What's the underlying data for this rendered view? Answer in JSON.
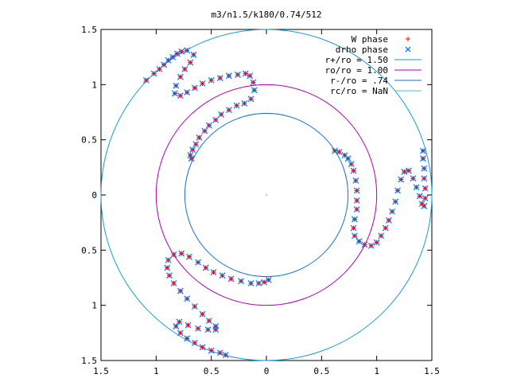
{
  "chart_data": {
    "type": "scatter",
    "title": "m3/n1.5/k180/0.74/512",
    "xlabel": "",
    "ylabel": "",
    "xlim": [
      -1.5,
      1.5
    ],
    "ylim": [
      -1.5,
      1.5
    ],
    "x_ticks": [
      {
        "value": -1.5,
        "label": "1.5"
      },
      {
        "value": -1.0,
        "label": "1"
      },
      {
        "value": -0.5,
        "label": "0.5"
      },
      {
        "value": 0.0,
        "label": "0"
      },
      {
        "value": 0.5,
        "label": "0.5"
      },
      {
        "value": 1.0,
        "label": "1"
      },
      {
        "value": 1.5,
        "label": "1.5"
      }
    ],
    "y_ticks": [
      {
        "value": 1.5,
        "label": "1.5"
      },
      {
        "value": 1.0,
        "label": "1"
      },
      {
        "value": 0.5,
        "label": "0.5"
      },
      {
        "value": 0.0,
        "label": "0"
      },
      {
        "value": -0.5,
        "label": "0.5"
      },
      {
        "value": -1.0,
        "label": "1"
      },
      {
        "value": -1.5,
        "label": "1.5"
      }
    ],
    "grid": false,
    "legend_position": "top-right",
    "legend": [
      {
        "label": "W phase",
        "kind": "marker",
        "marker": "plus",
        "color": "#ff0000"
      },
      {
        "label": "drho phase",
        "kind": "marker",
        "marker": "cross",
        "color": "#0080ff"
      },
      {
        "label": "r+/ro = 1.50",
        "kind": "line",
        "color": "#1a9bd7"
      },
      {
        "label": "ro/ro = 1.00",
        "kind": "line",
        "color": "#b000b0"
      },
      {
        "label": "r-/ro = .74",
        "kind": "line",
        "color": "#1a6fd7"
      },
      {
        "label": "rc/ro = NaN",
        "kind": "line",
        "color": "#40c8e0"
      }
    ],
    "circles": [
      {
        "name": "r+/ro = 1.50",
        "cx": 0,
        "cy": 0,
        "r": 1.5,
        "color": "#1a9bd7"
      },
      {
        "name": "ro/ro = 1.00",
        "cx": 0,
        "cy": 0,
        "r": 1.0,
        "color": "#b000b0"
      },
      {
        "name": "r-/ro = .74",
        "cx": 0,
        "cy": 0,
        "r": 0.74,
        "color": "#1a6fd7"
      }
    ],
    "series": [
      {
        "name": "W phase",
        "marker": "plus",
        "color": "#ff0000",
        "arms": [
          [
            [
              -1.09,
              1.04
            ],
            [
              -1.02,
              1.1
            ],
            [
              -0.97,
              1.14
            ],
            [
              -0.93,
              1.18
            ],
            [
              -0.89,
              1.22
            ],
            [
              -0.85,
              1.25
            ],
            [
              -0.81,
              1.28
            ],
            [
              -0.77,
              1.3
            ],
            [
              -0.72,
              1.31
            ],
            [
              -0.66,
              1.27
            ],
            [
              -0.69,
              1.2
            ],
            [
              -0.74,
              1.14
            ],
            [
              -0.78,
              1.07
            ],
            [
              -0.82,
              0.99
            ],
            [
              -0.83,
              0.92
            ],
            [
              -0.78,
              0.9
            ],
            [
              -0.72,
              0.93
            ],
            [
              -0.65,
              0.97
            ],
            [
              -0.58,
              1.01
            ],
            [
              -0.5,
              1.04
            ],
            [
              -0.42,
              1.06
            ],
            [
              -0.34,
              1.08
            ],
            [
              -0.26,
              1.09
            ],
            [
              -0.19,
              1.1
            ],
            [
              -0.15,
              1.08
            ],
            [
              -0.12,
              1.02
            ],
            [
              -0.11,
              0.95
            ],
            [
              -0.14,
              0.87
            ],
            [
              -0.2,
              0.83
            ],
            [
              -0.27,
              0.81
            ],
            [
              -0.34,
              0.77
            ],
            [
              -0.41,
              0.73
            ],
            [
              -0.46,
              0.68
            ],
            [
              -0.52,
              0.63
            ],
            [
              -0.56,
              0.58
            ],
            [
              -0.61,
              0.52
            ],
            [
              -0.64,
              0.46
            ],
            [
              -0.67,
              0.41
            ],
            [
              -0.69,
              0.36
            ],
            [
              -0.68,
              0.33
            ]
          ],
          [
            [
              0.62,
              0.4
            ],
            [
              0.66,
              0.39
            ],
            [
              0.71,
              0.36
            ],
            [
              0.74,
              0.33
            ],
            [
              0.77,
              0.28
            ],
            [
              0.79,
              0.22
            ],
            [
              0.81,
              0.13
            ],
            [
              0.82,
              0.04
            ],
            [
              0.82,
              -0.05
            ],
            [
              0.82,
              -0.13
            ],
            [
              0.8,
              -0.22
            ],
            [
              0.79,
              -0.3
            ],
            [
              0.8,
              -0.37
            ],
            [
              0.84,
              -0.42
            ],
            [
              0.89,
              -0.45
            ],
            [
              0.95,
              -0.46
            ],
            [
              1.0,
              -0.43
            ],
            [
              1.04,
              -0.37
            ],
            [
              1.08,
              -0.3
            ],
            [
              1.11,
              -0.23
            ],
            [
              1.14,
              -0.15
            ],
            [
              1.17,
              -0.06
            ],
            [
              1.19,
              0.04
            ],
            [
              1.22,
              0.14
            ],
            [
              1.25,
              0.21
            ],
            [
              1.29,
              0.22
            ],
            [
              1.33,
              0.15
            ],
            [
              1.36,
              0.07
            ],
            [
              1.39,
              -0.01
            ],
            [
              1.41,
              -0.08
            ],
            [
              1.43,
              -0.1
            ],
            [
              1.44,
              -0.03
            ],
            [
              1.44,
              0.06
            ],
            [
              1.43,
              0.15
            ],
            [
              1.43,
              0.24
            ],
            [
              1.42,
              0.33
            ],
            [
              1.42,
              0.4
            ]
          ],
          [
            [
              0.02,
              -0.77
            ],
            [
              -0.02,
              -0.79
            ],
            [
              -0.07,
              -0.8
            ],
            [
              -0.14,
              -0.8
            ],
            [
              -0.23,
              -0.78
            ],
            [
              -0.32,
              -0.76
            ],
            [
              -0.4,
              -0.73
            ],
            [
              -0.48,
              -0.7
            ],
            [
              -0.55,
              -0.66
            ],
            [
              -0.62,
              -0.61
            ],
            [
              -0.7,
              -0.56
            ],
            [
              -0.77,
              -0.53
            ],
            [
              -0.84,
              -0.54
            ],
            [
              -0.89,
              -0.59
            ],
            [
              -0.9,
              -0.66
            ],
            [
              -0.88,
              -0.73
            ],
            [
              -0.84,
              -0.8
            ],
            [
              -0.78,
              -0.87
            ],
            [
              -0.72,
              -0.94
            ],
            [
              -0.65,
              -1.01
            ],
            [
              -0.58,
              -1.08
            ],
            [
              -0.52,
              -1.14
            ],
            [
              -0.46,
              -1.19
            ],
            [
              -0.46,
              -1.22
            ],
            [
              -0.53,
              -1.22
            ],
            [
              -0.62,
              -1.21
            ],
            [
              -0.71,
              -1.18
            ],
            [
              -0.79,
              -1.15
            ],
            [
              -0.82,
              -1.19
            ],
            [
              -0.78,
              -1.25
            ],
            [
              -0.72,
              -1.3
            ],
            [
              -0.65,
              -1.34
            ],
            [
              -0.58,
              -1.38
            ],
            [
              -0.5,
              -1.41
            ],
            [
              -0.42,
              -1.43
            ],
            [
              -0.37,
              -1.45
            ]
          ]
        ]
      },
      {
        "name": "drho phase",
        "marker": "cross",
        "color": "#0080ff",
        "arms": [
          [
            [
              -1.09,
              1.04
            ],
            [
              -1.02,
              1.1
            ],
            [
              -0.97,
              1.14
            ],
            [
              -0.93,
              1.18
            ],
            [
              -0.89,
              1.22
            ],
            [
              -0.85,
              1.25
            ],
            [
              -0.81,
              1.28
            ],
            [
              -0.77,
              1.3
            ],
            [
              -0.72,
              1.31
            ],
            [
              -0.66,
              1.27
            ],
            [
              -0.69,
              1.2
            ],
            [
              -0.74,
              1.14
            ],
            [
              -0.78,
              1.07
            ],
            [
              -0.82,
              0.99
            ],
            [
              -0.83,
              0.92
            ],
            [
              -0.78,
              0.9
            ],
            [
              -0.72,
              0.93
            ],
            [
              -0.65,
              0.97
            ],
            [
              -0.58,
              1.01
            ],
            [
              -0.5,
              1.04
            ],
            [
              -0.42,
              1.06
            ],
            [
              -0.34,
              1.08
            ],
            [
              -0.26,
              1.09
            ],
            [
              -0.19,
              1.1
            ],
            [
              -0.15,
              1.08
            ],
            [
              -0.12,
              1.02
            ],
            [
              -0.11,
              0.95
            ],
            [
              -0.14,
              0.87
            ],
            [
              -0.2,
              0.83
            ],
            [
              -0.27,
              0.81
            ],
            [
              -0.34,
              0.77
            ],
            [
              -0.41,
              0.73
            ],
            [
              -0.46,
              0.68
            ],
            [
              -0.52,
              0.63
            ],
            [
              -0.56,
              0.58
            ],
            [
              -0.61,
              0.52
            ],
            [
              -0.64,
              0.46
            ],
            [
              -0.67,
              0.41
            ],
            [
              -0.69,
              0.36
            ],
            [
              -0.68,
              0.33
            ]
          ],
          [
            [
              0.62,
              0.4
            ],
            [
              0.66,
              0.39
            ],
            [
              0.71,
              0.36
            ],
            [
              0.74,
              0.33
            ],
            [
              0.77,
              0.28
            ],
            [
              0.79,
              0.22
            ],
            [
              0.81,
              0.13
            ],
            [
              0.82,
              0.04
            ],
            [
              0.82,
              -0.05
            ],
            [
              0.82,
              -0.13
            ],
            [
              0.8,
              -0.22
            ],
            [
              0.79,
              -0.3
            ],
            [
              0.8,
              -0.37
            ],
            [
              0.84,
              -0.42
            ],
            [
              0.89,
              -0.45
            ],
            [
              0.95,
              -0.46
            ],
            [
              1.0,
              -0.43
            ],
            [
              1.04,
              -0.37
            ],
            [
              1.08,
              -0.3
            ],
            [
              1.11,
              -0.23
            ],
            [
              1.14,
              -0.15
            ],
            [
              1.17,
              -0.06
            ],
            [
              1.19,
              0.04
            ],
            [
              1.22,
              0.14
            ],
            [
              1.25,
              0.21
            ],
            [
              1.29,
              0.22
            ],
            [
              1.33,
              0.15
            ],
            [
              1.36,
              0.07
            ],
            [
              1.39,
              -0.01
            ],
            [
              1.41,
              -0.08
            ],
            [
              1.43,
              -0.1
            ],
            [
              1.44,
              -0.03
            ],
            [
              1.44,
              0.06
            ],
            [
              1.43,
              0.15
            ],
            [
              1.43,
              0.24
            ],
            [
              1.42,
              0.33
            ],
            [
              1.42,
              0.4
            ]
          ],
          [
            [
              0.02,
              -0.77
            ],
            [
              -0.02,
              -0.79
            ],
            [
              -0.07,
              -0.8
            ],
            [
              -0.14,
              -0.8
            ],
            [
              -0.23,
              -0.78
            ],
            [
              -0.32,
              -0.76
            ],
            [
              -0.4,
              -0.73
            ],
            [
              -0.48,
              -0.7
            ],
            [
              -0.55,
              -0.66
            ],
            [
              -0.62,
              -0.61
            ],
            [
              -0.7,
              -0.56
            ],
            [
              -0.77,
              -0.53
            ],
            [
              -0.84,
              -0.54
            ],
            [
              -0.89,
              -0.59
            ],
            [
              -0.9,
              -0.66
            ],
            [
              -0.88,
              -0.73
            ],
            [
              -0.84,
              -0.8
            ],
            [
              -0.78,
              -0.87
            ],
            [
              -0.72,
              -0.94
            ],
            [
              -0.65,
              -1.01
            ],
            [
              -0.58,
              -1.08
            ],
            [
              -0.52,
              -1.14
            ],
            [
              -0.46,
              -1.19
            ],
            [
              -0.46,
              -1.22
            ],
            [
              -0.53,
              -1.22
            ],
            [
              -0.62,
              -1.21
            ],
            [
              -0.71,
              -1.18
            ],
            [
              -0.79,
              -1.15
            ],
            [
              -0.82,
              -1.19
            ],
            [
              -0.78,
              -1.25
            ],
            [
              -0.72,
              -1.3
            ],
            [
              -0.65,
              -1.34
            ],
            [
              -0.58,
              -1.38
            ],
            [
              -0.5,
              -1.41
            ],
            [
              -0.42,
              -1.43
            ],
            [
              -0.37,
              -1.45
            ]
          ]
        ]
      }
    ]
  }
}
